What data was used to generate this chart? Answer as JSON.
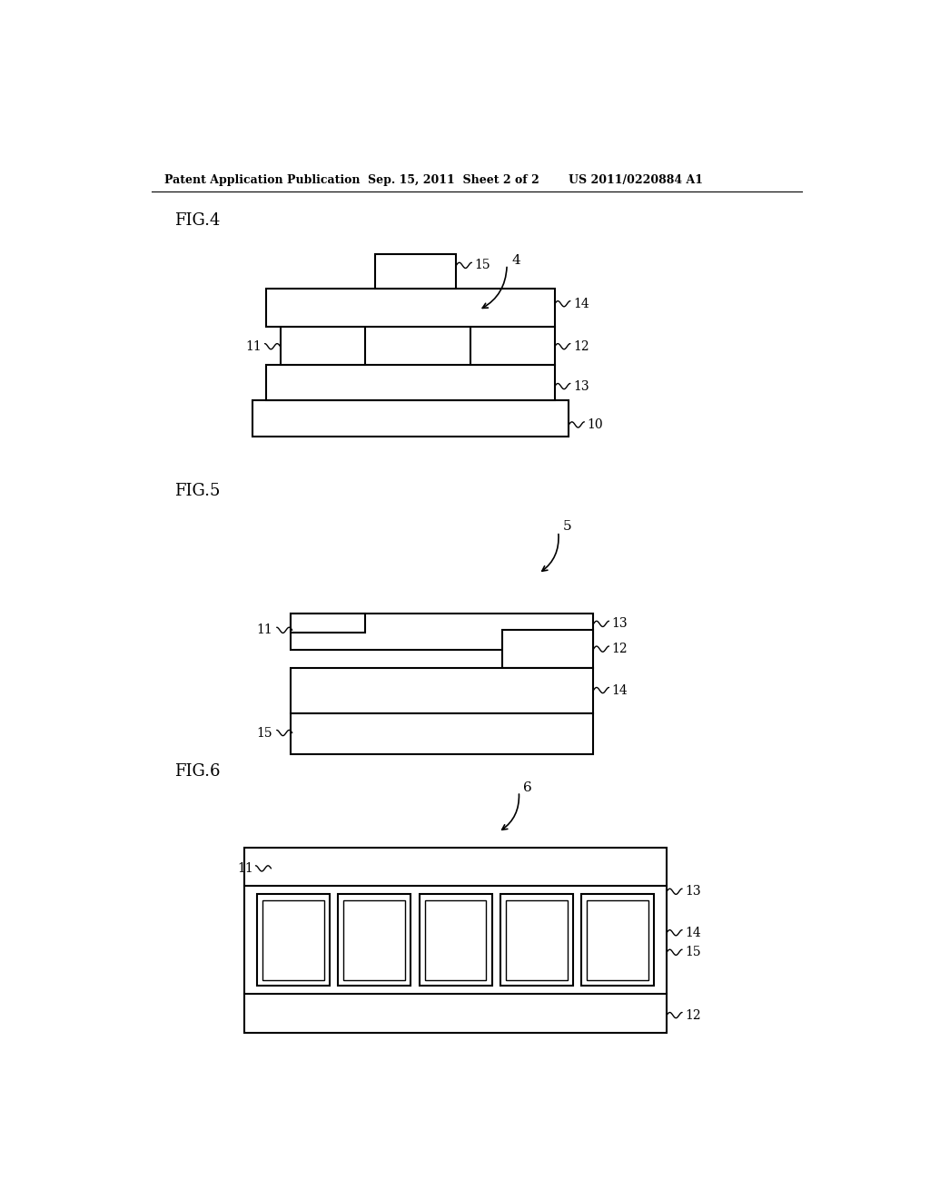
{
  "bg_color": "#ffffff",
  "line_color": "#000000",
  "header_text": "Patent Application Publication",
  "header_date": "Sep. 15, 2011  Sheet 2 of 2",
  "header_patent": "US 2011/0220884 A1",
  "fig4_label": "FIG.4",
  "fig5_label": "FIG.5",
  "fig6_label": "FIG.6"
}
